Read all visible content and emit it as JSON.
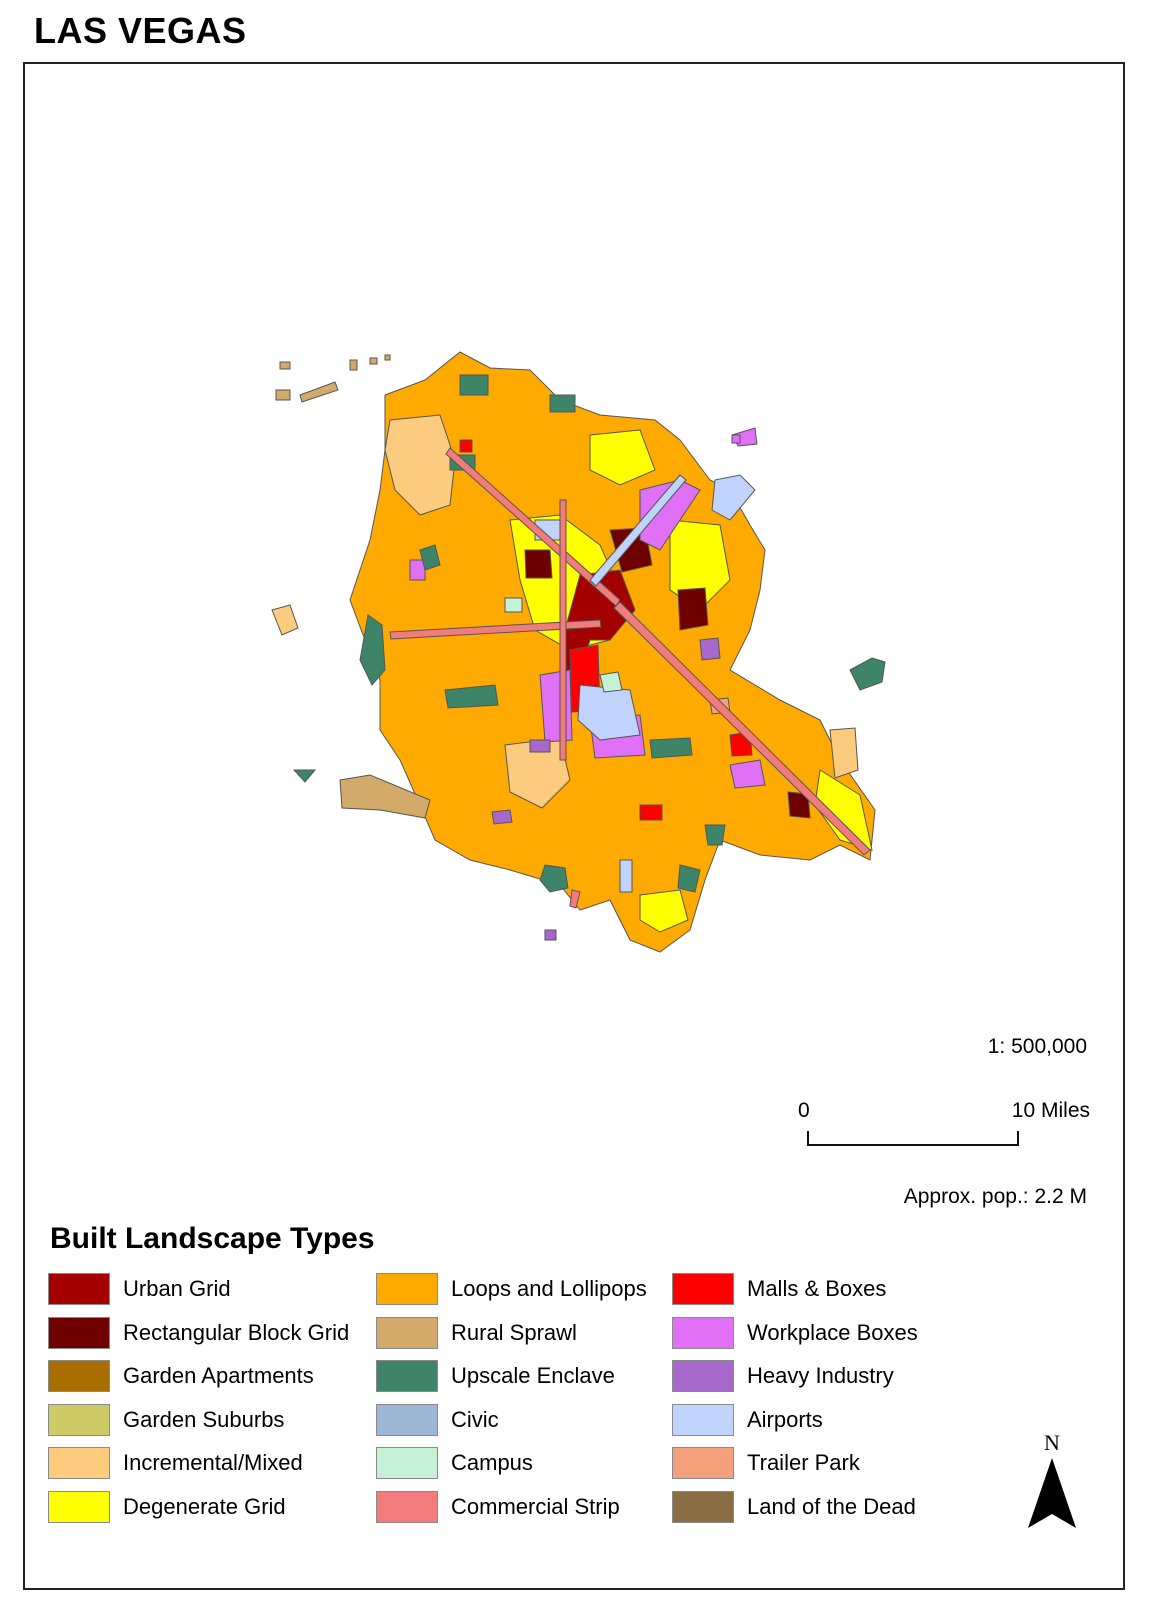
{
  "title": "LAS VEGAS",
  "scale": {
    "ratio": "1: 500,000",
    "bar_start": "0",
    "bar_end": "10 Miles"
  },
  "population": "Approx. pop.: 2.2 M",
  "north_label": "N",
  "legend": {
    "title": "Built Landscape Types",
    "items": [
      {
        "label": "Urban Grid",
        "color": "#a50000"
      },
      {
        "label": "Rectangular Block Grid",
        "color": "#6e0000"
      },
      {
        "label": "Garden Apartments",
        "color": "#a86e00"
      },
      {
        "label": "Garden Suburbs",
        "color": "#cdcb66"
      },
      {
        "label": "Incremental/Mixed",
        "color": "#fccb7e"
      },
      {
        "label": "Degenerate Grid",
        "color": "#ffff00"
      },
      {
        "label": "Loops and Lollipops",
        "color": "#ffaa00"
      },
      {
        "label": "Rural Sprawl",
        "color": "#d2aa6a"
      },
      {
        "label": "Upscale Enclave",
        "color": "#3d8468"
      },
      {
        "label": "Civic",
        "color": "#9db8d7"
      },
      {
        "label": "Campus",
        "color": "#c5f2d7"
      },
      {
        "label": "Commercial Strip",
        "color": "#f27c7c"
      },
      {
        "label": "Malls & Boxes",
        "color": "#ff0000"
      },
      {
        "label": "Workplace Boxes",
        "color": "#e070f5"
      },
      {
        "label": "Heavy Industry",
        "color": "#a768cb"
      },
      {
        "label": "Airports",
        "color": "#c0d3fc"
      },
      {
        "label": "Trailer Park",
        "color": "#f4a07a"
      },
      {
        "label": "Land of the Dead",
        "color": "#8a6d45"
      }
    ]
  }
}
